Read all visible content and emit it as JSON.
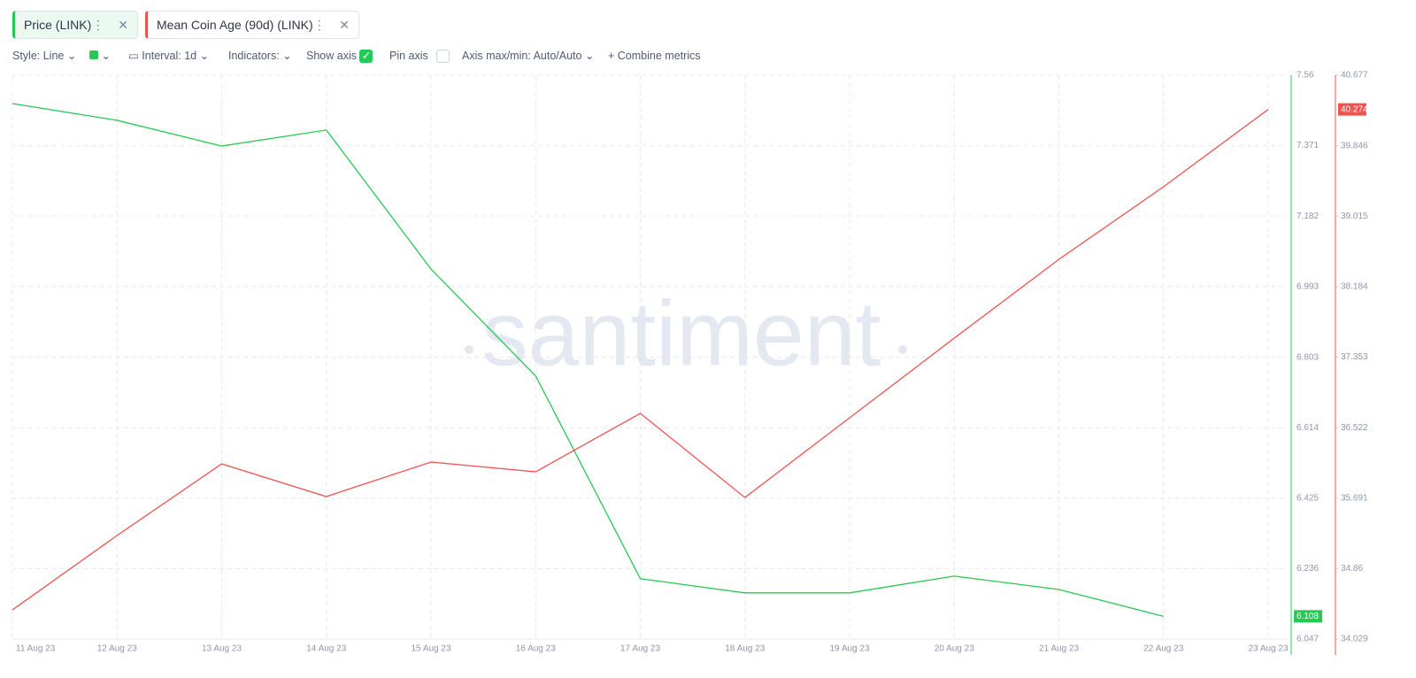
{
  "toolbar": {
    "style": "Style: Line",
    "interval": "Interval: 1d",
    "indicators": "Indicators:",
    "show_axis": "Show axis",
    "pin_axis": "Pin axis",
    "axis_minmax": "Axis max/min: Auto/Auto",
    "combine": "Combine metrics"
  },
  "chart_data": {
    "type": "line",
    "watermark": "santiment",
    "categories": [
      "11 Aug 23",
      "12 Aug 23",
      "13 Aug 23",
      "14 Aug 23",
      "15 Aug 23",
      "16 Aug 23",
      "17 Aug 23",
      "18 Aug 23",
      "19 Aug 23",
      "20 Aug 23",
      "21 Aug 23",
      "22 Aug 23",
      "23 Aug 23"
    ],
    "series": [
      {
        "name": "Price (LINK)",
        "color": "#26c953",
        "axis": "y",
        "values": [
          7.484,
          7.439,
          7.37,
          7.413,
          7.04,
          6.753,
          6.209,
          6.171,
          6.171,
          6.216,
          6.18,
          6.108,
          null
        ]
      },
      {
        "name": "Mean Coin Age (90d) (LINK)",
        "color": "#f0524f",
        "axis": "y2",
        "values": [
          34.373,
          35.25,
          36.095,
          35.709,
          36.116,
          36.001,
          36.69,
          35.698,
          36.638,
          37.577,
          38.506,
          39.362,
          40.274
        ]
      }
    ],
    "ylim": [
      6.047,
      7.56
    ],
    "yticks": [
      7.56,
      7.371,
      7.182,
      6.993,
      6.803,
      6.614,
      6.425,
      6.236,
      6.047
    ],
    "y2lim": [
      34.029,
      40.677
    ],
    "y2ticks": [
      40.677,
      39.846,
      39.015,
      38.184,
      37.353,
      36.522,
      35.691,
      34.86,
      34.029
    ],
    "grid": true
  }
}
